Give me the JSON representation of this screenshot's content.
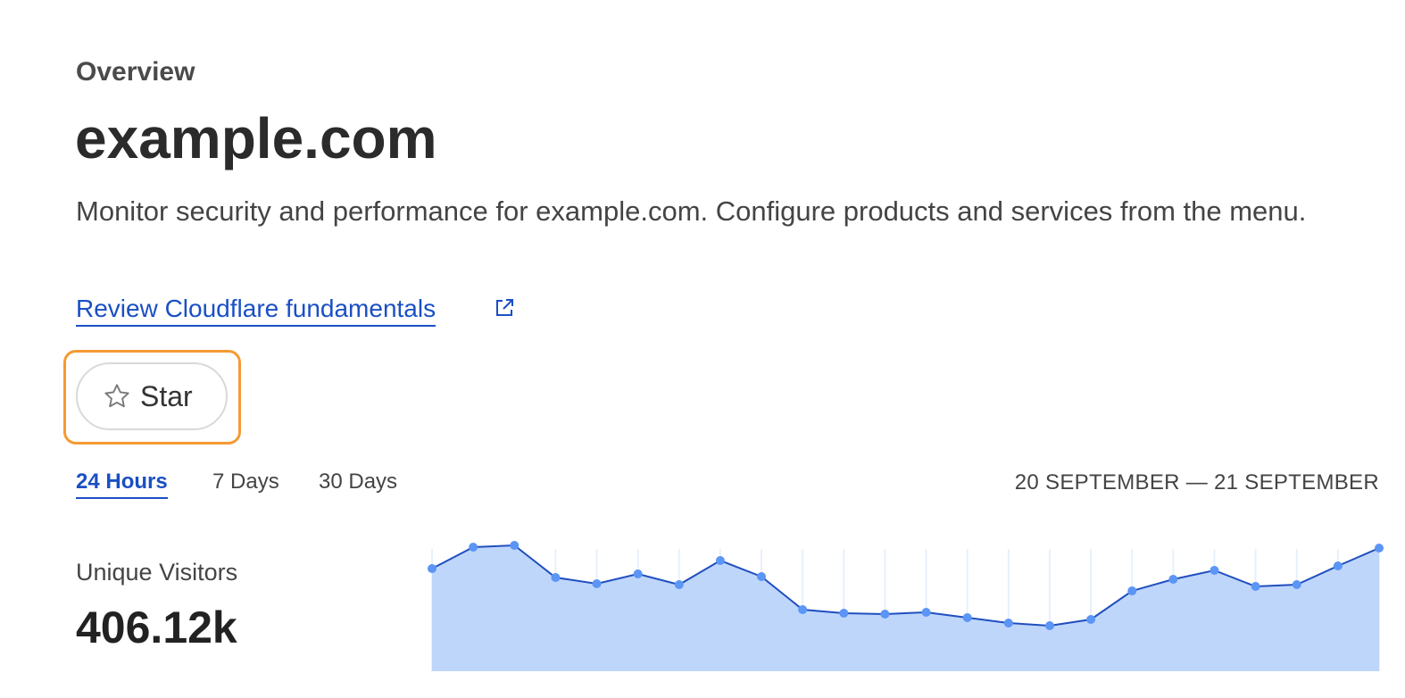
{
  "header": {
    "eyebrow": "Overview",
    "title": "example.com",
    "description": "Monitor security and performance for example.com. Configure products and services from the menu."
  },
  "link": {
    "label": "Review Cloudflare fundamentals",
    "icon": "external-link-icon"
  },
  "star_button": {
    "label": "Star",
    "icon": "star-outline-icon",
    "focused": true,
    "focus_color": "#f59a32"
  },
  "time_tabs": [
    {
      "label": "24 Hours",
      "selected": true
    },
    {
      "label": "7 Days",
      "selected": false
    },
    {
      "label": "30 Days",
      "selected": false
    }
  ],
  "date_range": "20 SEPTEMBER — 21 SEPTEMBER",
  "metric": {
    "label": "Unique Visitors",
    "value": "406.12k"
  },
  "colors": {
    "accent": "#1a4fc4",
    "line": "#1f4fbf",
    "fill": "#bfd6fb",
    "point": "#5b95f5"
  },
  "chart_data": {
    "type": "area",
    "note_units": "relative (no axis shown)",
    "ylim": [
      0,
      150
    ],
    "grid": "vertical",
    "values": [
      115,
      139,
      141,
      105,
      98,
      109,
      97,
      124,
      106,
      69,
      65,
      64,
      66,
      60,
      54,
      51,
      58,
      90,
      103,
      113,
      95,
      97,
      118,
      138
    ]
  }
}
